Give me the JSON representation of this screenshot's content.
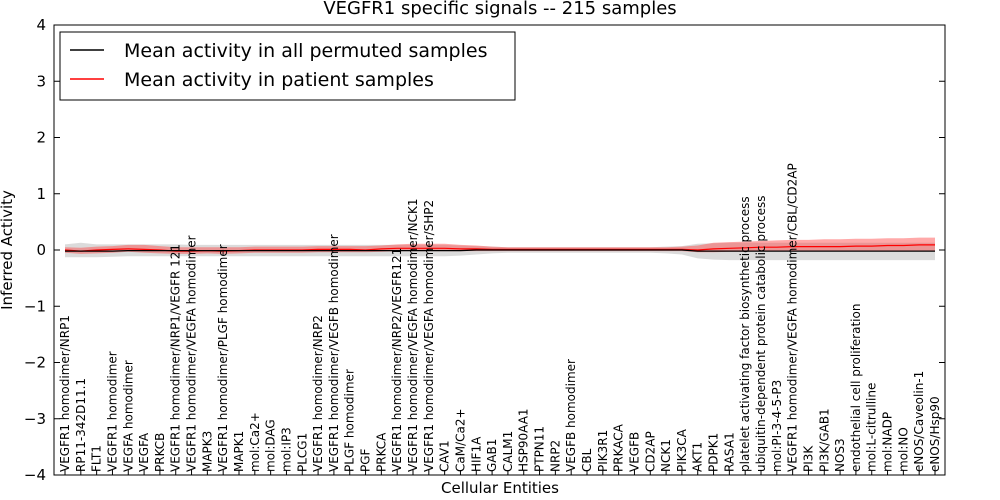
{
  "chart_data": {
    "type": "line",
    "title": "VEGFR1 specific signals -- 215 samples",
    "xlabel": "Cellular Entities",
    "ylabel": "Inferred Activity",
    "ylim": [
      -4,
      4
    ],
    "yticks": [
      -4,
      -3,
      -2,
      -1,
      0,
      1,
      2,
      3,
      4
    ],
    "grid": false,
    "legend_position": "top-left",
    "categories": [
      "VEGFR1 homodimer/NRP1",
      "RP11-342D11.1",
      "FLT1",
      "VEGFR1 homodimer",
      "VEGFA homodimer",
      "VEGFA",
      "PRKCB",
      "VEGFR1 homodimer/NRP1/VEGFR 121",
      "VEGFR1 homodimer/VEGFA homodimer",
      "MAPK3",
      "VEGFR1 homodimer/PLGF homodimer",
      "MAPK1",
      "mol:Ca2+",
      "mol:DAG",
      "mol:IP3",
      "PLCG1",
      "VEGFR1 homodimer/NRP2",
      "VEGFR1 homodimer/VEGFB homodimer",
      "PLGF homodimer",
      "PGF",
      "PRKCA",
      "VEGFR1 homodimer/NRP2/VEGFR121",
      "VEGFR1 homodimer/VEGFA homodimer/NCK1",
      "VEGFR1 homodimer/VEGFA homodimer/SHP2",
      "CAV1",
      "CaM/Ca2+",
      "HIF1A",
      "GAB1",
      "CALM1",
      "HSP90AA1",
      "PTPN11",
      "NRP2",
      "VEGFB homodimer",
      "CBL",
      "PIK3R1",
      "PRKACA",
      "VEGFB",
      "CD2AP",
      "NCK1",
      "PIK3CA",
      "AKT1",
      "PDPK1",
      "RASA1",
      "platelet activating factor biosynthetic process",
      "ubiquitin-dependent protein catabolic process",
      "mol:PI-3-4-5-P3",
      "VEGFR1 homodimer/VEGFA homodimer/CBL/CD2AP",
      "PI3K",
      "PI3K/GAB1",
      "NOS3",
      "endothelial cell proliferation",
      "mol:L-citrulline",
      "mol:NADP",
      "mol:NO",
      "eNOS/Caveolin-1",
      "eNOS/Hsp90"
    ],
    "series": [
      {
        "name": "Mean activity in all permuted samples",
        "color": "#000000",
        "band_color": "#b0b0b0",
        "values": [
          -0.02,
          -0.02,
          -0.02,
          -0.02,
          -0.01,
          -0.01,
          -0.01,
          -0.01,
          -0.01,
          -0.01,
          -0.01,
          -0.01,
          -0.01,
          -0.01,
          -0.01,
          -0.01,
          -0.01,
          -0.01,
          -0.01,
          -0.01,
          -0.01,
          -0.01,
          -0.01,
          -0.01,
          -0.01,
          -0.01,
          0,
          0,
          0,
          0,
          0,
          0,
          0,
          0,
          0,
          0,
          0,
          0,
          0,
          0,
          -0.02,
          -0.02,
          -0.02,
          -0.02,
          -0.02,
          -0.02,
          -0.02,
          -0.02,
          -0.02,
          -0.02,
          -0.02,
          -0.02,
          -0.02,
          -0.02,
          -0.02,
          -0.02
        ],
        "lower": [
          -0.13,
          -0.13,
          -0.13,
          -0.12,
          -0.11,
          -0.11,
          -0.11,
          -0.11,
          -0.11,
          -0.11,
          -0.11,
          -0.11,
          -0.11,
          -0.11,
          -0.11,
          -0.11,
          -0.11,
          -0.11,
          -0.11,
          -0.11,
          -0.11,
          -0.11,
          -0.11,
          -0.11,
          -0.11,
          -0.1,
          -0.08,
          -0.06,
          -0.05,
          -0.05,
          -0.05,
          -0.05,
          -0.05,
          -0.05,
          -0.05,
          -0.05,
          -0.05,
          -0.05,
          -0.06,
          -0.08,
          -0.15,
          -0.17,
          -0.18,
          -0.18,
          -0.18,
          -0.18,
          -0.18,
          -0.18,
          -0.18,
          -0.18,
          -0.18,
          -0.18,
          -0.18,
          -0.18,
          -0.18,
          -0.18
        ],
        "upper": [
          0.1,
          0.13,
          0.1,
          0.1,
          0.1,
          0.1,
          0.1,
          0.1,
          0.09,
          0.09,
          0.09,
          0.09,
          0.09,
          0.09,
          0.09,
          0.09,
          0.09,
          0.09,
          0.09,
          0.09,
          0.09,
          0.09,
          0.09,
          0.09,
          0.09,
          0.08,
          0.07,
          0.06,
          0.05,
          0.05,
          0.05,
          0.05,
          0.05,
          0.05,
          0.05,
          0.05,
          0.05,
          0.05,
          0.06,
          0.07,
          0.11,
          0.12,
          0.13,
          0.13,
          0.13,
          0.13,
          0.13,
          0.13,
          0.13,
          0.13,
          0.13,
          0.13,
          0.13,
          0.13,
          0.13,
          0.13
        ]
      },
      {
        "name": "Mean activity in patient samples",
        "color": "#ff0000",
        "band_color": "#ff4040",
        "values": [
          0,
          -0.02,
          0,
          0.01,
          0.02,
          0.01,
          0,
          -0.02,
          -0.02,
          -0.01,
          -0.02,
          -0.01,
          0,
          0,
          0,
          0,
          0.01,
          0.01,
          0.01,
          0,
          0.02,
          0.03,
          0.03,
          0.03,
          0.03,
          0.02,
          0.02,
          0.01,
          0.01,
          0.01,
          0.01,
          0.01,
          0.01,
          0.01,
          0.01,
          0.01,
          0.01,
          0.01,
          0.01,
          0.01,
          0,
          0.02,
          0.03,
          0.04,
          0.05,
          0.05,
          0.06,
          0.06,
          0.06,
          0.06,
          0.07,
          0.07,
          0.08,
          0.08,
          0.09,
          0.09
        ],
        "lower": [
          -0.05,
          -0.07,
          -0.06,
          -0.05,
          -0.03,
          -0.05,
          -0.06,
          -0.07,
          -0.07,
          -0.06,
          -0.07,
          -0.06,
          -0.05,
          -0.05,
          -0.05,
          -0.05,
          -0.04,
          -0.04,
          -0.04,
          -0.04,
          -0.03,
          -0.02,
          -0.02,
          -0.02,
          -0.02,
          -0.02,
          -0.02,
          -0.02,
          -0.02,
          -0.02,
          -0.02,
          -0.02,
          -0.02,
          -0.02,
          -0.02,
          -0.02,
          -0.02,
          -0.02,
          -0.02,
          -0.02,
          -0.04,
          -0.04,
          -0.03,
          -0.03,
          -0.02,
          -0.02,
          -0.02,
          -0.02,
          -0.02,
          -0.02,
          -0.02,
          -0.02,
          -0.02,
          -0.02,
          -0.02,
          -0.02
        ],
        "upper": [
          0.05,
          0.04,
          0.06,
          0.07,
          0.09,
          0.09,
          0.07,
          0.05,
          0.05,
          0.05,
          0.05,
          0.05,
          0.06,
          0.06,
          0.06,
          0.06,
          0.07,
          0.07,
          0.07,
          0.07,
          0.08,
          0.1,
          0.11,
          0.11,
          0.11,
          0.09,
          0.08,
          0.06,
          0.05,
          0.05,
          0.05,
          0.05,
          0.05,
          0.05,
          0.05,
          0.05,
          0.05,
          0.05,
          0.05,
          0.06,
          0.08,
          0.13,
          0.14,
          0.15,
          0.16,
          0.17,
          0.18,
          0.18,
          0.19,
          0.19,
          0.2,
          0.2,
          0.21,
          0.21,
          0.22,
          0.22
        ]
      }
    ]
  }
}
